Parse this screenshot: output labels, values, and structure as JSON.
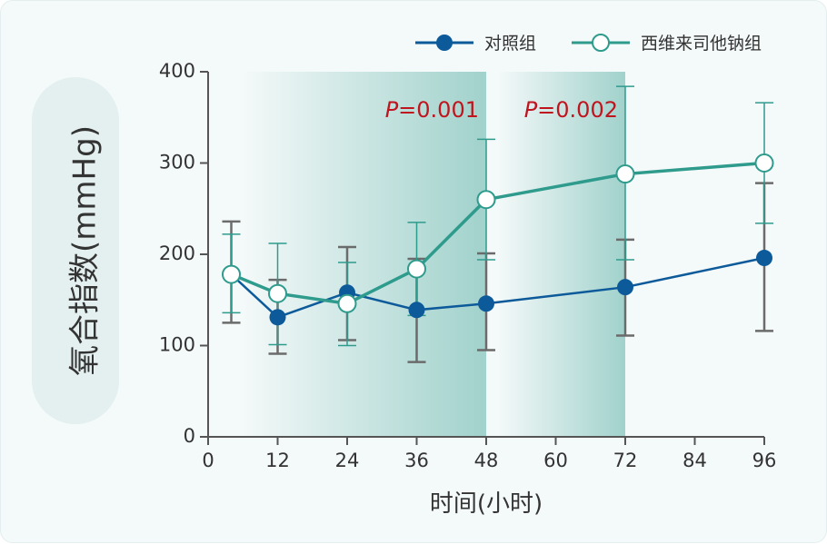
{
  "chart_data": {
    "type": "line",
    "xlabel": "时间(小时)",
    "ylabel": "氧合指数(mmHg)",
    "xlim": [
      0,
      96
    ],
    "ylim": [
      0,
      400
    ],
    "xticks": [
      "0",
      "12",
      "24",
      "36",
      "48",
      "60",
      "72",
      "84",
      "96"
    ],
    "yticks": [
      "0",
      "100",
      "200",
      "300",
      "400"
    ],
    "legend_position": "top-right",
    "series": [
      {
        "name": "对照组",
        "color": "#0d5a9a",
        "marker": "filled-circle",
        "x": [
          4,
          12,
          24,
          36,
          48,
          72,
          96
        ],
        "y": [
          178,
          131,
          158,
          139,
          146,
          164,
          196
        ],
        "err": [
          [
            125,
            236
          ],
          [
            91,
            172
          ],
          [
            106,
            208
          ],
          [
            82,
            195
          ],
          [
            95,
            201
          ],
          [
            111,
            216
          ],
          [
            116,
            278
          ]
        ]
      },
      {
        "name": "西维来司他钠组",
        "color": "#2e9b8d",
        "marker": "open-circle",
        "x": [
          4,
          12,
          24,
          36,
          48,
          72,
          96
        ],
        "y": [
          178,
          157,
          146,
          184,
          260,
          288,
          300
        ],
        "err": [
          [
            136,
            222
          ],
          [
            101,
            212
          ],
          [
            100,
            191
          ],
          [
            133,
            235
          ],
          [
            194,
            326
          ],
          [
            194,
            384
          ],
          [
            234,
            366
          ]
        ]
      }
    ],
    "shaded_regions": [
      {
        "x": [
          6,
          48
        ],
        "label_prefix": "P",
        "label_value": "=0.001"
      },
      {
        "x": [
          50,
          72
        ],
        "label_prefix": "P",
        "label_value": "=0.002"
      }
    ]
  }
}
